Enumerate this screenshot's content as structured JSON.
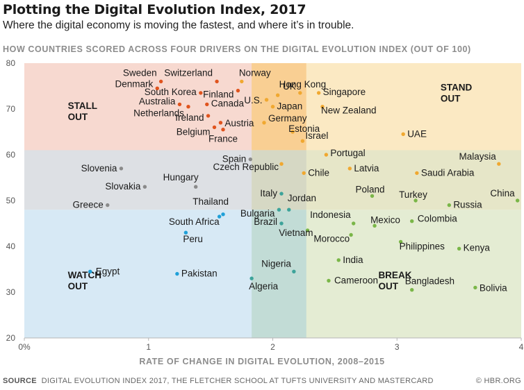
{
  "header": {
    "title": "Plotting the Digital Evolution Index, 2017",
    "subtitle": "Where the digital economy is moving the fastest, and where it’s in trouble.",
    "chart_heading": "HOW COUNTRIES SCORED ACROSS FOUR DRIVERS ON THE DIGITAL EVOLUTION INDEX (OUT OF 100)"
  },
  "footer": {
    "source_label": "SOURCE",
    "source_text": "DIGITAL EVOLUTION INDEX 2017, THE FLETCHER SCHOOL AT TUFTS UNIVERSITY AND MASTERCARD",
    "credit": "© HBR.ORG"
  },
  "chart_data": {
    "type": "scatter",
    "xlabel": "RATE OF CHANGE IN DIGITAL EVOLUTION, 2008–2015",
    "ylabel": "",
    "xlim": [
      0,
      4
    ],
    "ylim": [
      20,
      80
    ],
    "x_ticks": [
      {
        "value": 0,
        "label": "0%"
      },
      {
        "value": 1,
        "label": "1"
      },
      {
        "value": 2,
        "label": "2"
      },
      {
        "value": 3,
        "label": "3"
      },
      {
        "value": 4,
        "label": "4"
      }
    ],
    "y_ticks": [
      20,
      30,
      40,
      50,
      60,
      70,
      80
    ],
    "quadrants": [
      {
        "name": "STALL\nOUT",
        "color": "#f7d9d0",
        "xlim": [
          0,
          2
        ],
        "ylim": [
          60,
          80
        ]
      },
      {
        "name": "STAND\nOUT",
        "color": "#fbe9c3",
        "xlim": [
          2,
          4
        ],
        "ylim": [
          60,
          80
        ]
      },
      {
        "name": "WATCH\nOUT",
        "color": "#d7e9f5",
        "xlim": [
          0,
          2
        ],
        "ylim": [
          20,
          48
        ]
      },
      {
        "name": "BREAK\nOUT",
        "color": "#e4ecd3",
        "xlim": [
          2,
          4
        ],
        "ylim": [
          20,
          48
        ]
      }
    ],
    "colors": {
      "stall_out": "#e0541e",
      "stand_out": "#f0a830",
      "watch_out": "#1fa0d8",
      "break_out": "#7ab648",
      "grey": "#8a8a8a",
      "teal": "#3da39a"
    },
    "points": [
      {
        "name": "Sweden",
        "x": 1.1,
        "y": 76,
        "group": "stall_out"
      },
      {
        "name": "Switzerland",
        "x": 1.55,
        "y": 76,
        "group": "stall_out"
      },
      {
        "name": "Denmark",
        "x": 1.07,
        "y": 74.5,
        "group": "stall_out"
      },
      {
        "name": "South Korea",
        "x": 1.42,
        "y": 73.5,
        "group": "stall_out"
      },
      {
        "name": "Finland",
        "x": 1.72,
        "y": 74,
        "group": "stall_out"
      },
      {
        "name": "Australia",
        "x": 1.25,
        "y": 71,
        "group": "stall_out"
      },
      {
        "name": "Netherlands",
        "x": 1.32,
        "y": 70.5,
        "group": "stall_out"
      },
      {
        "name": "Canada",
        "x": 1.47,
        "y": 71,
        "group": "stall_out"
      },
      {
        "name": "Ireland",
        "x": 1.48,
        "y": 68.5,
        "group": "stall_out"
      },
      {
        "name": "Austria",
        "x": 1.58,
        "y": 67,
        "group": "stall_out"
      },
      {
        "name": "Belgium",
        "x": 1.53,
        "y": 66,
        "group": "stall_out"
      },
      {
        "name": "France",
        "x": 1.6,
        "y": 65.5,
        "group": "stall_out"
      },
      {
        "name": "Norway",
        "x": 1.75,
        "y": 76,
        "group": "stand_out"
      },
      {
        "name": "Hong Kong",
        "x": 2.04,
        "y": 73,
        "group": "stand_out"
      },
      {
        "name": "UK",
        "x": 2.22,
        "y": 73.5,
        "group": "stand_out"
      },
      {
        "name": "U.S.",
        "x": 1.95,
        "y": 72,
        "group": "stand_out"
      },
      {
        "name": "Japan",
        "x": 2.0,
        "y": 70.5,
        "group": "stand_out"
      },
      {
        "name": "Germany",
        "x": 1.93,
        "y": 67,
        "group": "stand_out"
      },
      {
        "name": "Estonia",
        "x": 2.16,
        "y": 65,
        "group": "stand_out"
      },
      {
        "name": "Israel",
        "x": 2.24,
        "y": 63,
        "group": "stand_out"
      },
      {
        "name": "Singapore",
        "x": 2.37,
        "y": 73.5,
        "group": "stand_out"
      },
      {
        "name": "New Zealand",
        "x": 2.4,
        "y": 70.5,
        "group": "stand_out"
      },
      {
        "name": "UAE",
        "x": 3.05,
        "y": 64.5,
        "group": "stand_out"
      },
      {
        "name": "Portugal",
        "x": 2.43,
        "y": 60,
        "group": "stand_out"
      },
      {
        "name": "Malaysia",
        "x": 3.82,
        "y": 58,
        "group": "stand_out"
      },
      {
        "name": "Latvia",
        "x": 2.62,
        "y": 57,
        "group": "stand_out"
      },
      {
        "name": "Saudi Arabia",
        "x": 3.16,
        "y": 56,
        "group": "stand_out"
      },
      {
        "name": "Chile",
        "x": 2.25,
        "y": 56,
        "group": "stand_out"
      },
      {
        "name": "Czech Republic",
        "x": 2.07,
        "y": 58,
        "group": "stand_out"
      },
      {
        "name": "Spain",
        "x": 1.82,
        "y": 59,
        "group": "grey"
      },
      {
        "name": "Slovenia",
        "x": 0.78,
        "y": 57,
        "group": "grey"
      },
      {
        "name": "Slovakia",
        "x": 0.97,
        "y": 53,
        "group": "grey"
      },
      {
        "name": "Hungary",
        "x": 1.38,
        "y": 53,
        "group": "grey"
      },
      {
        "name": "Greece",
        "x": 0.67,
        "y": 49,
        "group": "grey"
      },
      {
        "name": "Poland",
        "x": 2.8,
        "y": 51,
        "group": "break_out"
      },
      {
        "name": "Turkey",
        "x": 3.15,
        "y": 50,
        "group": "break_out"
      },
      {
        "name": "China",
        "x": 3.97,
        "y": 50,
        "group": "break_out"
      },
      {
        "name": "Russia",
        "x": 3.42,
        "y": 49,
        "group": "break_out"
      },
      {
        "name": "Italy",
        "x": 2.07,
        "y": 51.5,
        "group": "teal"
      },
      {
        "name": "Bulgaria",
        "x": 2.05,
        "y": 48,
        "group": "teal"
      },
      {
        "name": "Jordan",
        "x": 2.13,
        "y": 48,
        "group": "teal"
      },
      {
        "name": "Brazil",
        "x": 2.07,
        "y": 45,
        "group": "teal"
      },
      {
        "name": "Thailand",
        "x": 1.6,
        "y": 47,
        "group": "watch_out"
      },
      {
        "name": "South Africa",
        "x": 1.57,
        "y": 46.5,
        "group": "watch_out"
      },
      {
        "name": "Peru",
        "x": 1.3,
        "y": 43,
        "group": "watch_out"
      },
      {
        "name": "Egypt",
        "x": 0.53,
        "y": 34.5,
        "group": "watch_out"
      },
      {
        "name": "Pakistan",
        "x": 1.23,
        "y": 34,
        "group": "watch_out"
      },
      {
        "name": "Nigeria",
        "x": 2.17,
        "y": 34.5,
        "group": "teal"
      },
      {
        "name": "Algeria",
        "x": 1.83,
        "y": 33,
        "group": "teal"
      },
      {
        "name": "Vietnam",
        "x": 2.28,
        "y": 43.5,
        "group": "break_out"
      },
      {
        "name": "Indonesia",
        "x": 2.65,
        "y": 45,
        "group": "break_out"
      },
      {
        "name": "Mexico",
        "x": 2.82,
        "y": 44.5,
        "group": "break_out"
      },
      {
        "name": "Colombia",
        "x": 3.12,
        "y": 45.5,
        "group": "break_out"
      },
      {
        "name": "Morocco",
        "x": 2.63,
        "y": 42.5,
        "group": "break_out"
      },
      {
        "name": "Philippines",
        "x": 3.03,
        "y": 41,
        "group": "break_out"
      },
      {
        "name": "Kenya",
        "x": 3.5,
        "y": 39.5,
        "group": "break_out"
      },
      {
        "name": "India",
        "x": 2.53,
        "y": 37,
        "group": "break_out"
      },
      {
        "name": "Cameroon",
        "x": 2.45,
        "y": 32.5,
        "group": "break_out"
      },
      {
        "name": "Bangladesh",
        "x": 3.12,
        "y": 30.5,
        "group": "break_out"
      },
      {
        "name": "Bolivia",
        "x": 3.63,
        "y": 31,
        "group": "break_out"
      }
    ]
  }
}
